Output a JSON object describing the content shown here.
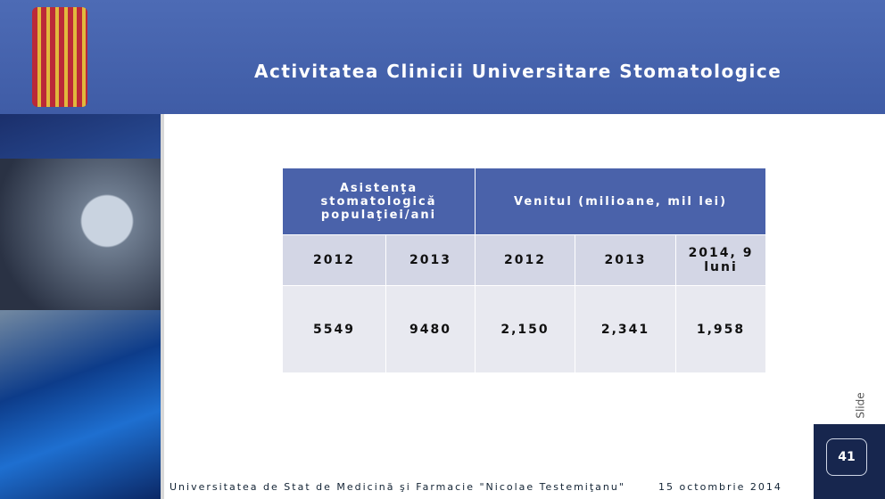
{
  "header": {
    "title": "Activitatea Clinicii Universitare Stomatologice"
  },
  "table": {
    "header": [
      "Asistenţa stomatologică populaţiei/ani",
      "Venitul (milioane, mil lei)"
    ],
    "subheader": [
      "2012",
      "2013",
      "2012",
      "2013",
      "2014, 9 luni"
    ],
    "rows": [
      [
        "5549",
        "9480",
        "2,150",
        "2,341",
        "1,958"
      ]
    ]
  },
  "footer": {
    "institution": "Universitatea de Stat de Medicină şi Farmacie \"Nicolae Testemiţanu\"",
    "date": "15 octombrie 2014"
  },
  "slide": {
    "label": "Slide",
    "number": "41"
  }
}
